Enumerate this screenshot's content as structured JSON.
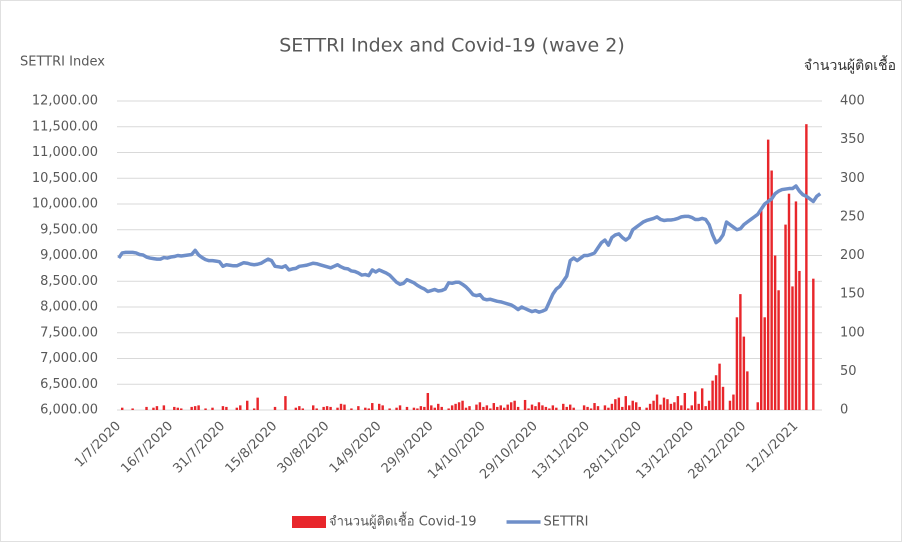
{
  "chart_data": {
    "type": "combo",
    "title": "SETTRI Index and Covid-19 (wave 2)",
    "ylabel": "SETTRI Index",
    "y2label": "จำนวนผู้ติดเชื้อ",
    "categories": [
      "1/7/2020",
      null,
      null,
      null,
      null,
      null,
      null,
      null,
      null,
      null,
      null,
      null,
      null,
      null,
      null,
      "16/7/2020",
      null,
      null,
      null,
      null,
      null,
      null,
      null,
      null,
      null,
      null,
      null,
      null,
      null,
      null,
      "31/7/2020",
      null,
      null,
      null,
      null,
      null,
      null,
      null,
      null,
      null,
      null,
      null,
      null,
      null,
      null,
      "15/8/2020",
      null,
      null,
      null,
      null,
      null,
      null,
      null,
      null,
      null,
      null,
      null,
      null,
      null,
      null,
      "30/8/2020",
      null,
      null,
      null,
      null,
      null,
      null,
      null,
      null,
      null,
      null,
      null,
      null,
      null,
      null,
      "14/9/2020",
      null,
      null,
      null,
      null,
      null,
      null,
      null,
      null,
      null,
      null,
      null,
      null,
      null,
      null,
      "29/9/2020",
      null,
      null,
      null,
      null,
      null,
      null,
      null,
      null,
      null,
      null,
      null,
      null,
      null,
      null,
      "14/10/2020",
      null,
      null,
      null,
      null,
      null,
      null,
      null,
      null,
      null,
      null,
      null,
      null,
      null,
      null,
      "29/10/2020",
      null,
      null,
      null,
      null,
      null,
      null,
      null,
      null,
      null,
      null,
      null,
      null,
      null,
      null,
      "13/11/2020",
      null,
      null,
      null,
      null,
      null,
      null,
      null,
      null,
      null,
      null,
      null,
      null,
      null,
      null,
      "28/11/2020",
      null,
      null,
      null,
      null,
      null,
      null,
      null,
      null,
      null,
      null,
      null,
      null,
      null,
      null,
      "13/12/2020",
      null,
      null,
      null,
      null,
      null,
      null,
      null,
      null,
      null,
      null,
      null,
      null,
      null,
      null,
      "28/12/2020",
      null,
      null,
      null,
      null,
      null,
      null,
      null,
      null,
      null,
      null,
      null,
      null,
      null,
      null,
      "12/1/2021",
      null,
      null,
      null,
      null,
      null,
      null,
      null
    ],
    "series": [
      {
        "name": "จำนวนผู้ติดเชื้อ Covid-19",
        "type": "bar",
        "axis": "y2",
        "color": "#e8262b",
        "values": [
          0,
          3,
          0,
          0,
          2,
          0,
          0,
          0,
          4,
          0,
          3,
          5,
          0,
          6,
          0,
          0,
          4,
          3,
          2,
          0,
          0,
          4,
          5,
          6,
          0,
          2,
          0,
          3,
          0,
          0,
          5,
          4,
          0,
          0,
          3,
          6,
          0,
          12,
          0,
          2,
          16,
          0,
          0,
          0,
          0,
          4,
          0,
          0,
          18,
          0,
          0,
          3,
          5,
          2,
          0,
          0,
          6,
          2,
          0,
          4,
          5,
          4,
          0,
          3,
          8,
          7,
          0,
          2,
          0,
          5,
          0,
          3,
          2,
          9,
          0,
          8,
          6,
          0,
          2,
          0,
          3,
          6,
          0,
          4,
          0,
          3,
          2,
          5,
          4,
          22,
          6,
          3,
          8,
          4,
          0,
          2,
          6,
          8,
          10,
          12,
          3,
          5,
          0,
          7,
          10,
          4,
          6,
          2,
          9,
          4,
          6,
          3,
          7,
          10,
          12,
          4,
          0,
          13,
          2,
          7,
          5,
          10,
          6,
          4,
          2,
          6,
          3,
          0,
          8,
          4,
          7,
          3,
          0,
          0,
          6,
          4,
          2,
          9,
          5,
          0,
          6,
          3,
          8,
          14,
          16,
          4,
          18,
          6,
          12,
          10,
          4,
          0,
          3,
          8,
          12,
          20,
          7,
          16,
          14,
          8,
          10,
          18,
          6,
          22,
          2,
          6,
          24,
          8,
          28,
          5,
          12,
          38,
          45,
          60,
          30,
          0,
          12,
          20,
          120,
          150,
          95,
          50,
          0,
          0,
          10,
          260,
          120,
          350,
          310,
          200,
          155,
          0,
          240,
          280,
          160,
          270,
          180,
          0,
          370,
          0,
          170,
          0,
          0
        ]
      },
      {
        "name": "SETTRI",
        "type": "line",
        "color": "#6f8fc9",
        "values": [
          8950,
          9050,
          9060,
          9060,
          9060,
          9050,
          9020,
          9010,
          8970,
          8950,
          8940,
          8930,
          8930,
          8960,
          8950,
          8970,
          8980,
          9000,
          8990,
          9000,
          9010,
          9020,
          9100,
          9010,
          8960,
          8920,
          8900,
          8900,
          8890,
          8880,
          8790,
          8820,
          8810,
          8800,
          8800,
          8830,
          8860,
          8850,
          8830,
          8820,
          8830,
          8850,
          8890,
          8930,
          8900,
          8790,
          8780,
          8770,
          8800,
          8720,
          8740,
          8750,
          8790,
          8800,
          8810,
          8830,
          8850,
          8840,
          8820,
          8800,
          8780,
          8760,
          8790,
          8820,
          8780,
          8750,
          8740,
          8700,
          8690,
          8660,
          8620,
          8630,
          8610,
          8720,
          8680,
          8720,
          8690,
          8660,
          8620,
          8550,
          8480,
          8440,
          8460,
          8530,
          8500,
          8470,
          8420,
          8380,
          8350,
          8300,
          8320,
          8340,
          8310,
          8320,
          8350,
          8470,
          8460,
          8480,
          8480,
          8440,
          8390,
          8320,
          8240,
          8220,
          8240,
          8160,
          8140,
          8150,
          8130,
          8110,
          8100,
          8080,
          8060,
          8040,
          8000,
          7950,
          8000,
          7970,
          7940,
          7910,
          7930,
          7900,
          7920,
          7950,
          8100,
          8250,
          8350,
          8400,
          8500,
          8600,
          8900,
          8950,
          8900,
          8950,
          9000,
          9000,
          9020,
          9050,
          9150,
          9250,
          9300,
          9200,
          9350,
          9400,
          9420,
          9350,
          9300,
          9350,
          9500,
          9550,
          9600,
          9650,
          9680,
          9700,
          9720,
          9750,
          9700,
          9680,
          9690,
          9690,
          9700,
          9720,
          9750,
          9760,
          9760,
          9740,
          9700,
          9700,
          9720,
          9700,
          9600,
          9400,
          9250,
          9300,
          9400,
          9650,
          9600,
          9550,
          9500,
          9520,
          9600,
          9650,
          9700,
          9750,
          9800,
          9900,
          10000,
          10050,
          10100,
          10200,
          10250,
          10280,
          10290,
          10300,
          10300,
          10350,
          10250,
          10180,
          10150,
          10100,
          10050,
          10150,
          10200
        ]
      }
    ],
    "ylim": [
      6000,
      12000
    ],
    "yticks": [
      {
        "value": 6000,
        "label": "6,000.00"
      },
      {
        "value": 6500,
        "label": "6,500.00"
      },
      {
        "value": 7000,
        "label": "7,000.00"
      },
      {
        "value": 7500,
        "label": "7,500.00"
      },
      {
        "value": 8000,
        "label": "8,000.00"
      },
      {
        "value": 8500,
        "label": "8,500.00"
      },
      {
        "value": 9000,
        "label": "9,000.00"
      },
      {
        "value": 9500,
        "label": "9,500.00"
      },
      {
        "value": 10000,
        "label": "10,000.00"
      },
      {
        "value": 10500,
        "label": "10,500.00"
      },
      {
        "value": 11000,
        "label": "11,000.00"
      },
      {
        "value": 11500,
        "label": "11,500.00"
      },
      {
        "value": 12000,
        "label": "12,000.00"
      }
    ],
    "y2lim": [
      0,
      400
    ],
    "y2ticks": [
      0,
      50,
      100,
      150,
      200,
      250,
      300,
      350,
      400
    ],
    "grid": true,
    "legend": "bottom"
  }
}
